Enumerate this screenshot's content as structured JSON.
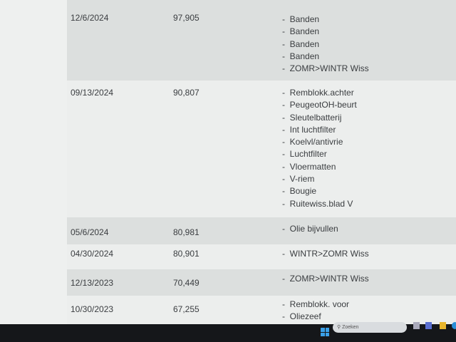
{
  "rows": [
    {
      "date": "12/6/2024",
      "km": "97,905",
      "items": [
        "Banden",
        "Banden",
        "Banden",
        "Banden",
        "ZOMR>WINTR Wiss"
      ]
    },
    {
      "date": "09/13/2024",
      "km": "90,807",
      "items": [
        "Remblokk.achter",
        "PeugeotOH-beurt",
        "Sleutelbatterij",
        "Int luchtfilter",
        "Koelvl/antivrie",
        "Luchtfilter",
        "Vloermatten",
        "V-riem",
        "Bougie",
        "Ruitewiss.blad V"
      ]
    },
    {
      "date": "05/6/2024",
      "km": "80,981",
      "items": [
        "Olie bijvullen"
      ]
    },
    {
      "date": "04/30/2024",
      "km": "80,901",
      "items": [
        "WINTR>ZOMR Wiss"
      ]
    },
    {
      "date": "12/13/2023",
      "km": "70,449",
      "items": [
        "ZOMR>WINTR Wiss"
      ]
    },
    {
      "date": "10/30/2023",
      "km": "67,255",
      "items": [
        "Remblokk. voor",
        "Oliezeef"
      ]
    }
  ],
  "taskbar": {
    "search_placeholder": "Zoeken",
    "icons": [
      "windows-start-icon",
      "search-icon",
      "task-view-icon",
      "teams-icon",
      "file-explorer-icon",
      "edge-icon"
    ]
  }
}
